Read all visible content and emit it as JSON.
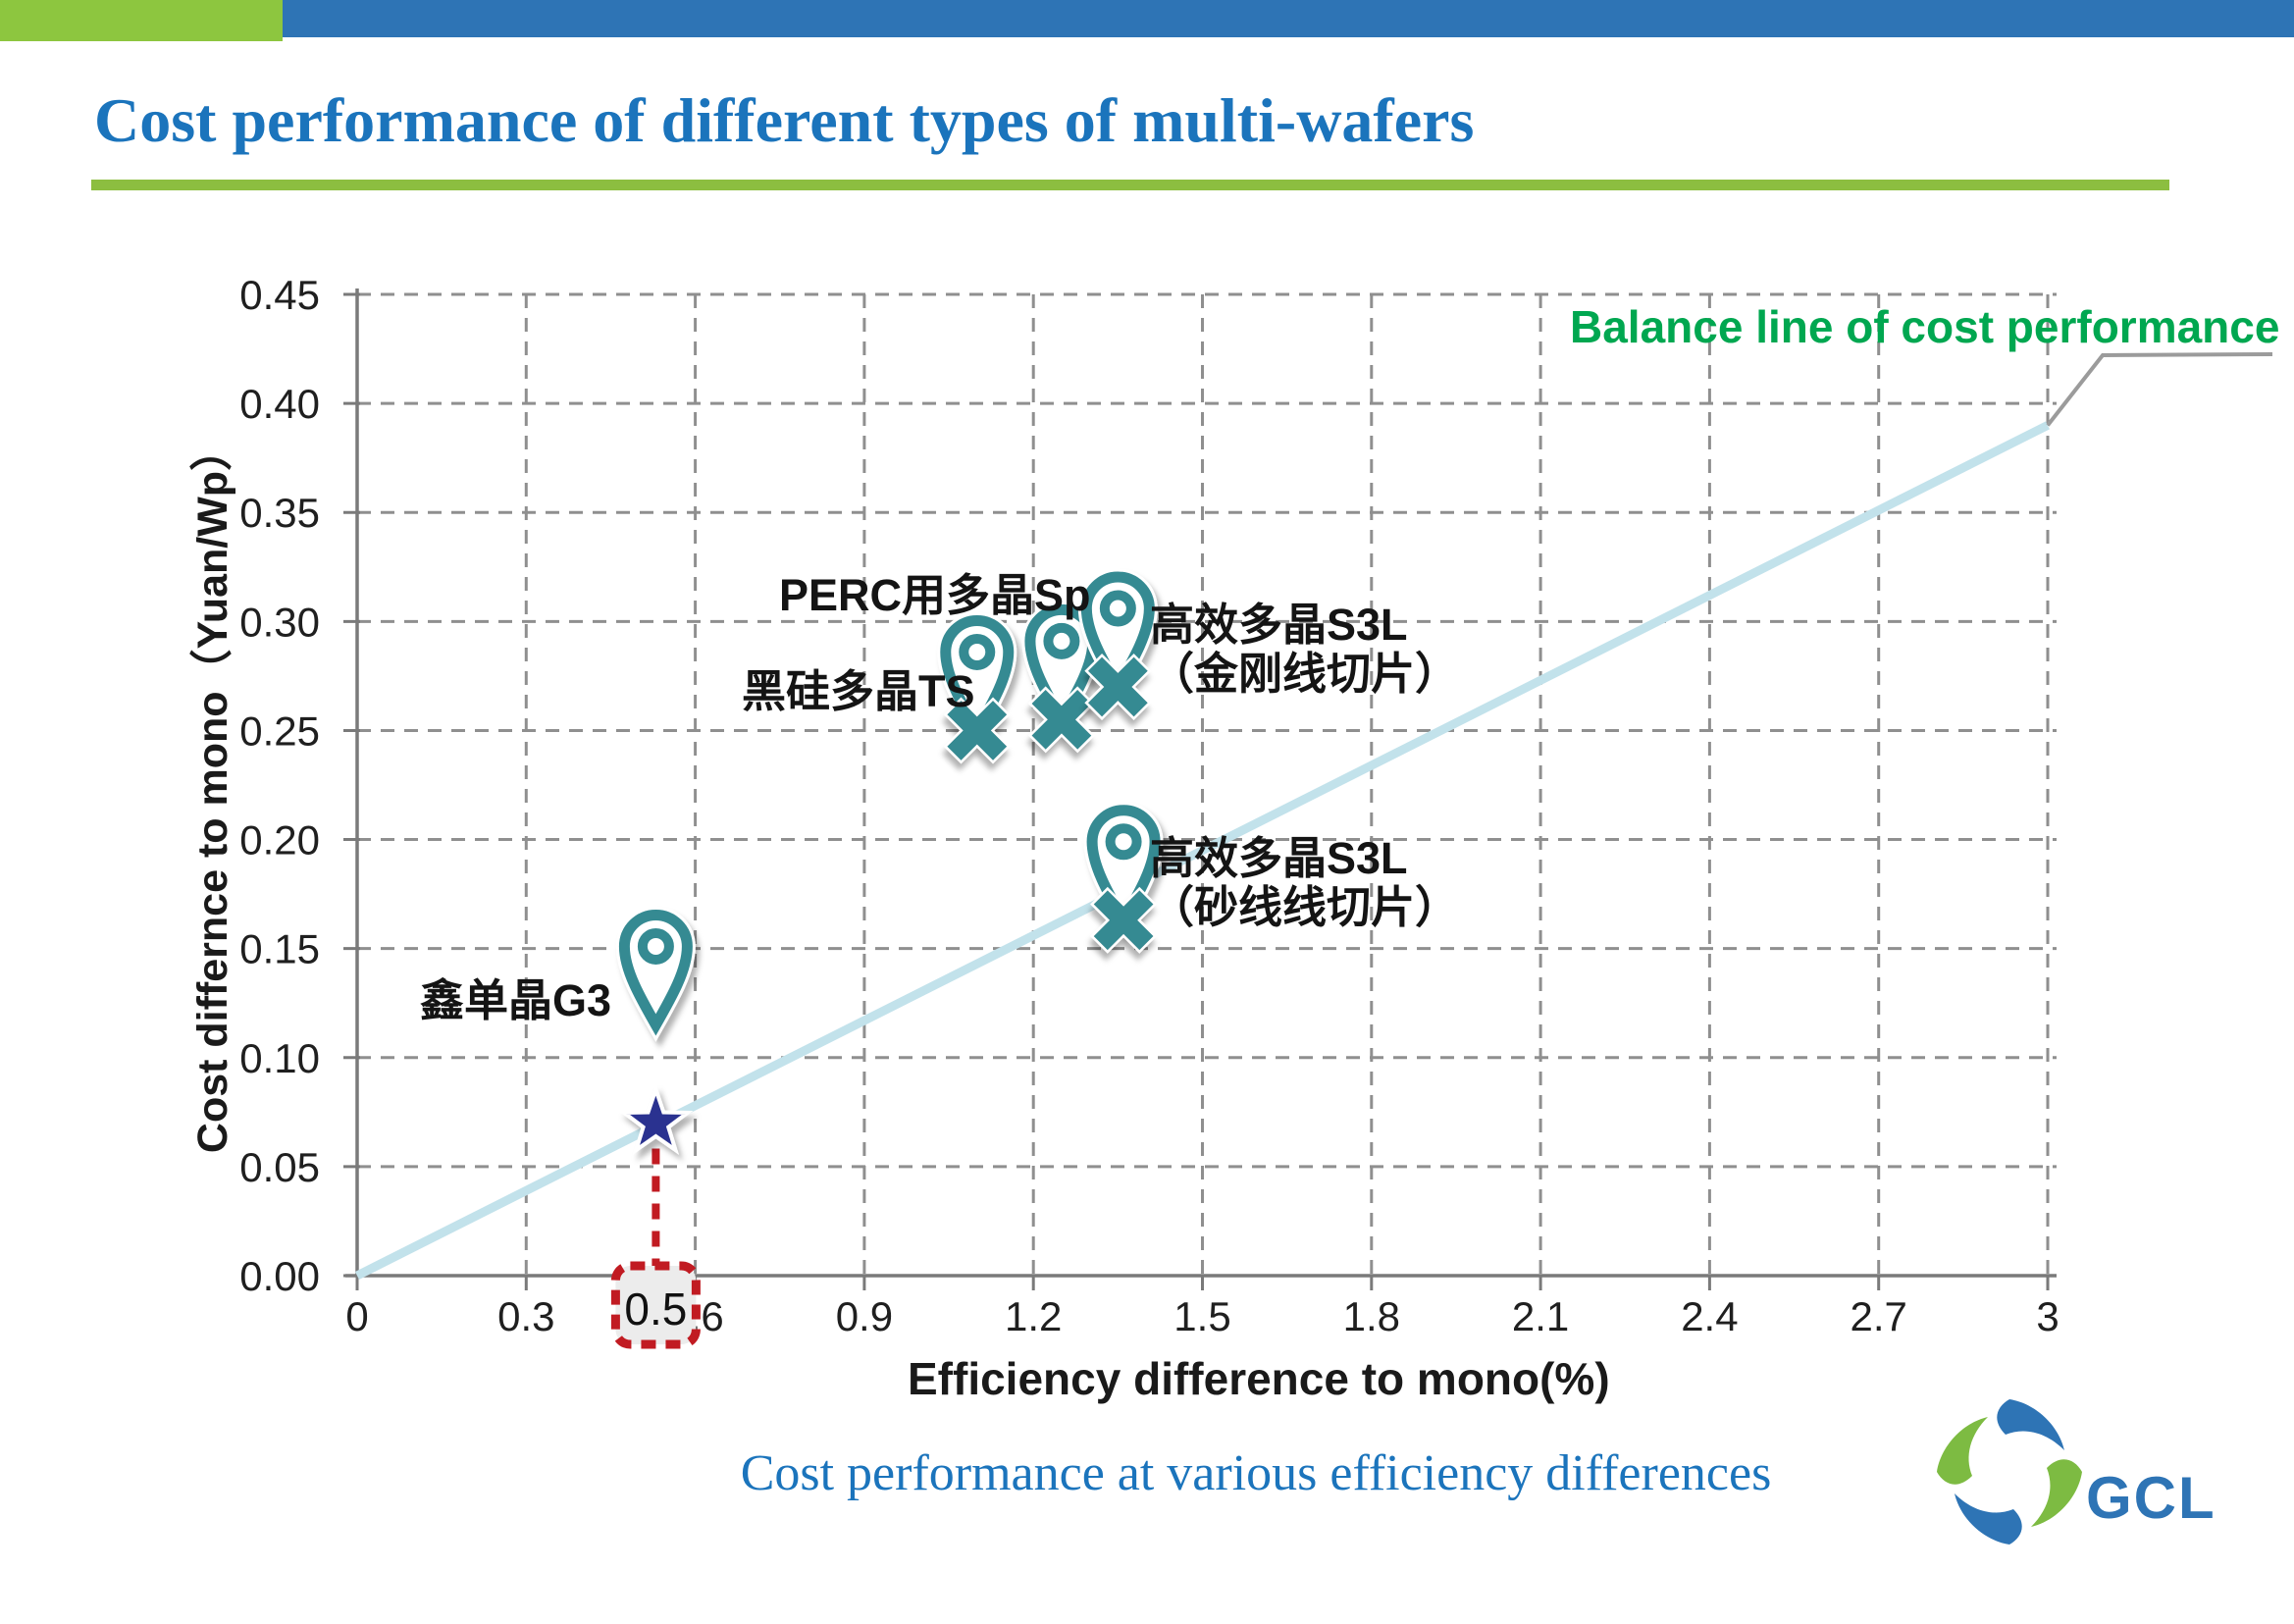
{
  "slide": {
    "title": "Cost performance of different types of multi-wafers",
    "caption": "Cost performance at various efficiency differences",
    "logo_text": "GCL"
  },
  "colors": {
    "header_blue": "#2E74B5",
    "accent_green": "#8DC63F",
    "title_blue": "#1B74BC",
    "balance_label_green": "#00A750",
    "marker_teal": "#358A92",
    "star_navy": "#2B3390",
    "annotation_red": "#C11B22",
    "balance_line_blue": "#C2E2EB",
    "grid_gray": "#8F8F8F",
    "axis_gray": "#7A7A7A",
    "callout_gray": "#9B9B9B"
  },
  "icons": {
    "pin": "map-pin-icon",
    "x": "x-marker-icon",
    "star": "star-icon",
    "logo": "gcl-pinwheel-icon"
  },
  "chart_data": {
    "type": "scatter",
    "xlabel": "Efficiency difference to mono(%)",
    "ylabel": "Cost differnce to mono（Yuan/Wp）",
    "xlim": [
      0,
      3
    ],
    "ylim": [
      0,
      0.45
    ],
    "xticks": [
      "0",
      "0.3",
      "0.6",
      "0.9",
      "1.2",
      "1.5",
      "1.8",
      "2.1",
      "2.4",
      "2.7",
      "3"
    ],
    "yticks": [
      "0.00",
      "0.05",
      "0.10",
      "0.15",
      "0.20",
      "0.25",
      "0.30",
      "0.35",
      "0.40",
      "0.45"
    ],
    "grid": true,
    "legend_position": "none",
    "balance_line": {
      "label": "Balance line of cost performance",
      "from": [
        0,
        0
      ],
      "to": [
        3,
        0.39
      ]
    },
    "points": [
      {
        "name": "鑫单晶G3",
        "lines": [
          "鑫单晶G3"
        ],
        "x": 0.53,
        "y": 0.07,
        "marker": "star",
        "pin_tip_y": 0.115
      },
      {
        "name": "黑硅多晶TS",
        "lines": [
          "黑硅多晶TS"
        ],
        "x": 1.1,
        "y": 0.25,
        "marker": "pin-x"
      },
      {
        "name": "PERC用多晶Sp",
        "lines": [
          "PERC用多晶Sp"
        ],
        "x": 1.25,
        "y": 0.255,
        "marker": "pin-x"
      },
      {
        "name": "高效多晶S3L（金刚线切片）",
        "lines": [
          "高效多晶S3L",
          "（金刚线切片）"
        ],
        "x": 1.35,
        "y": 0.27,
        "marker": "pin-x"
      },
      {
        "name": "高效多晶S3L（砂线线切片）",
        "lines": [
          "高效多晶S3L",
          "（砂线线切片）"
        ],
        "x": 1.36,
        "y": 0.163,
        "marker": "pin-x"
      }
    ],
    "annotation": {
      "label": "0.5",
      "attached_to": "鑫单晶G3"
    }
  }
}
